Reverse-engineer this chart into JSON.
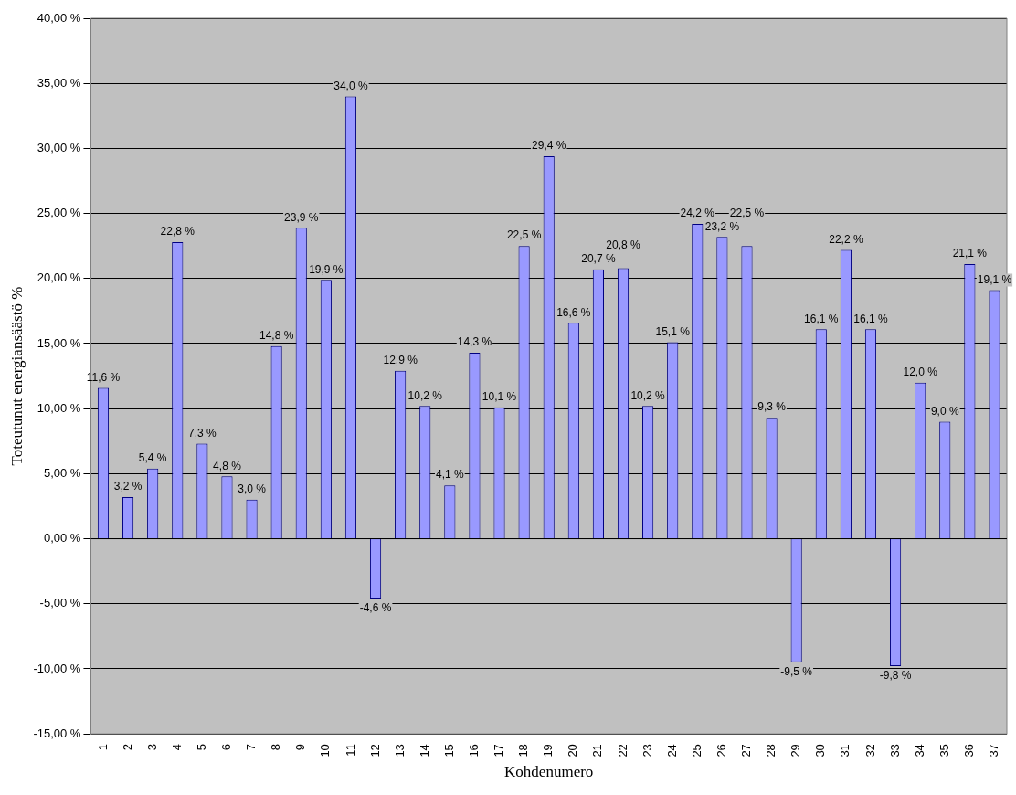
{
  "chart_data": {
    "type": "bar",
    "xlabel": "Kohdenumero",
    "ylabel": "Toteutunut energiansäästö %",
    "categories": [
      "1",
      "2",
      "3",
      "4",
      "5",
      "6",
      "7",
      "8",
      "9",
      "10",
      "11",
      "12",
      "13",
      "14",
      "15",
      "16",
      "17",
      "18",
      "19",
      "20",
      "21",
      "22",
      "23",
      "24",
      "25",
      "26",
      "27",
      "28",
      "29",
      "30",
      "31",
      "32",
      "33",
      "34",
      "35",
      "36",
      "37"
    ],
    "values": [
      11.6,
      3.2,
      5.4,
      22.8,
      7.3,
      4.8,
      3.0,
      14.8,
      23.9,
      19.9,
      34.0,
      -4.6,
      12.9,
      10.2,
      4.1,
      14.3,
      10.1,
      22.5,
      29.4,
      16.6,
      20.7,
      20.8,
      10.2,
      15.1,
      24.2,
      23.2,
      22.5,
      9.3,
      -9.5,
      16.1,
      22.2,
      16.1,
      -9.8,
      12.0,
      9.0,
      21.1,
      19.1
    ],
    "value_labels": [
      "11,6 %",
      "3,2 %",
      "5,4 %",
      "22,8 %",
      "7,3 %",
      "4,8 %",
      "3,0 %",
      "14,8 %",
      "23,9 %",
      "19,9 %",
      "34,0 %",
      "-4,6 %",
      "12,9 %",
      "10,2 %",
      "4,1 %",
      "14,3 %",
      "10,1 %",
      "22,5 %",
      "29,4 %",
      "16,6 %",
      "20,7 %",
      "20,8 %",
      "10,2 %",
      "15,1 %",
      "24,2 %",
      "23,2 %",
      "22,5 %",
      "9,3 %",
      "-9,5 %",
      "16,1 %",
      "22,2 %",
      "16,1 %",
      "-9,8 %",
      "12,0 %",
      "9,0 %",
      "21,1 %",
      "19,1 %"
    ],
    "color": "#9999ff",
    "ylim": [
      -15,
      40
    ],
    "yticks": [
      {
        "value": -15,
        "label": "-15,00 %"
      },
      {
        "value": -10,
        "label": "-10,00 %"
      },
      {
        "value": -5,
        "label": "-5,00 %"
      },
      {
        "value": 0,
        "label": "0,00 %"
      },
      {
        "value": 5,
        "label": "5,00 %"
      },
      {
        "value": 10,
        "label": "10,00 %"
      },
      {
        "value": 15,
        "label": "15,00 %"
      },
      {
        "value": 20,
        "label": "20,00 %"
      },
      {
        "value": 25,
        "label": "25,00 %"
      },
      {
        "value": 30,
        "label": "30,00 %"
      },
      {
        "value": 35,
        "label": "35,00 %"
      },
      {
        "value": 40,
        "label": "40,00 %"
      }
    ],
    "grid": "y"
  }
}
